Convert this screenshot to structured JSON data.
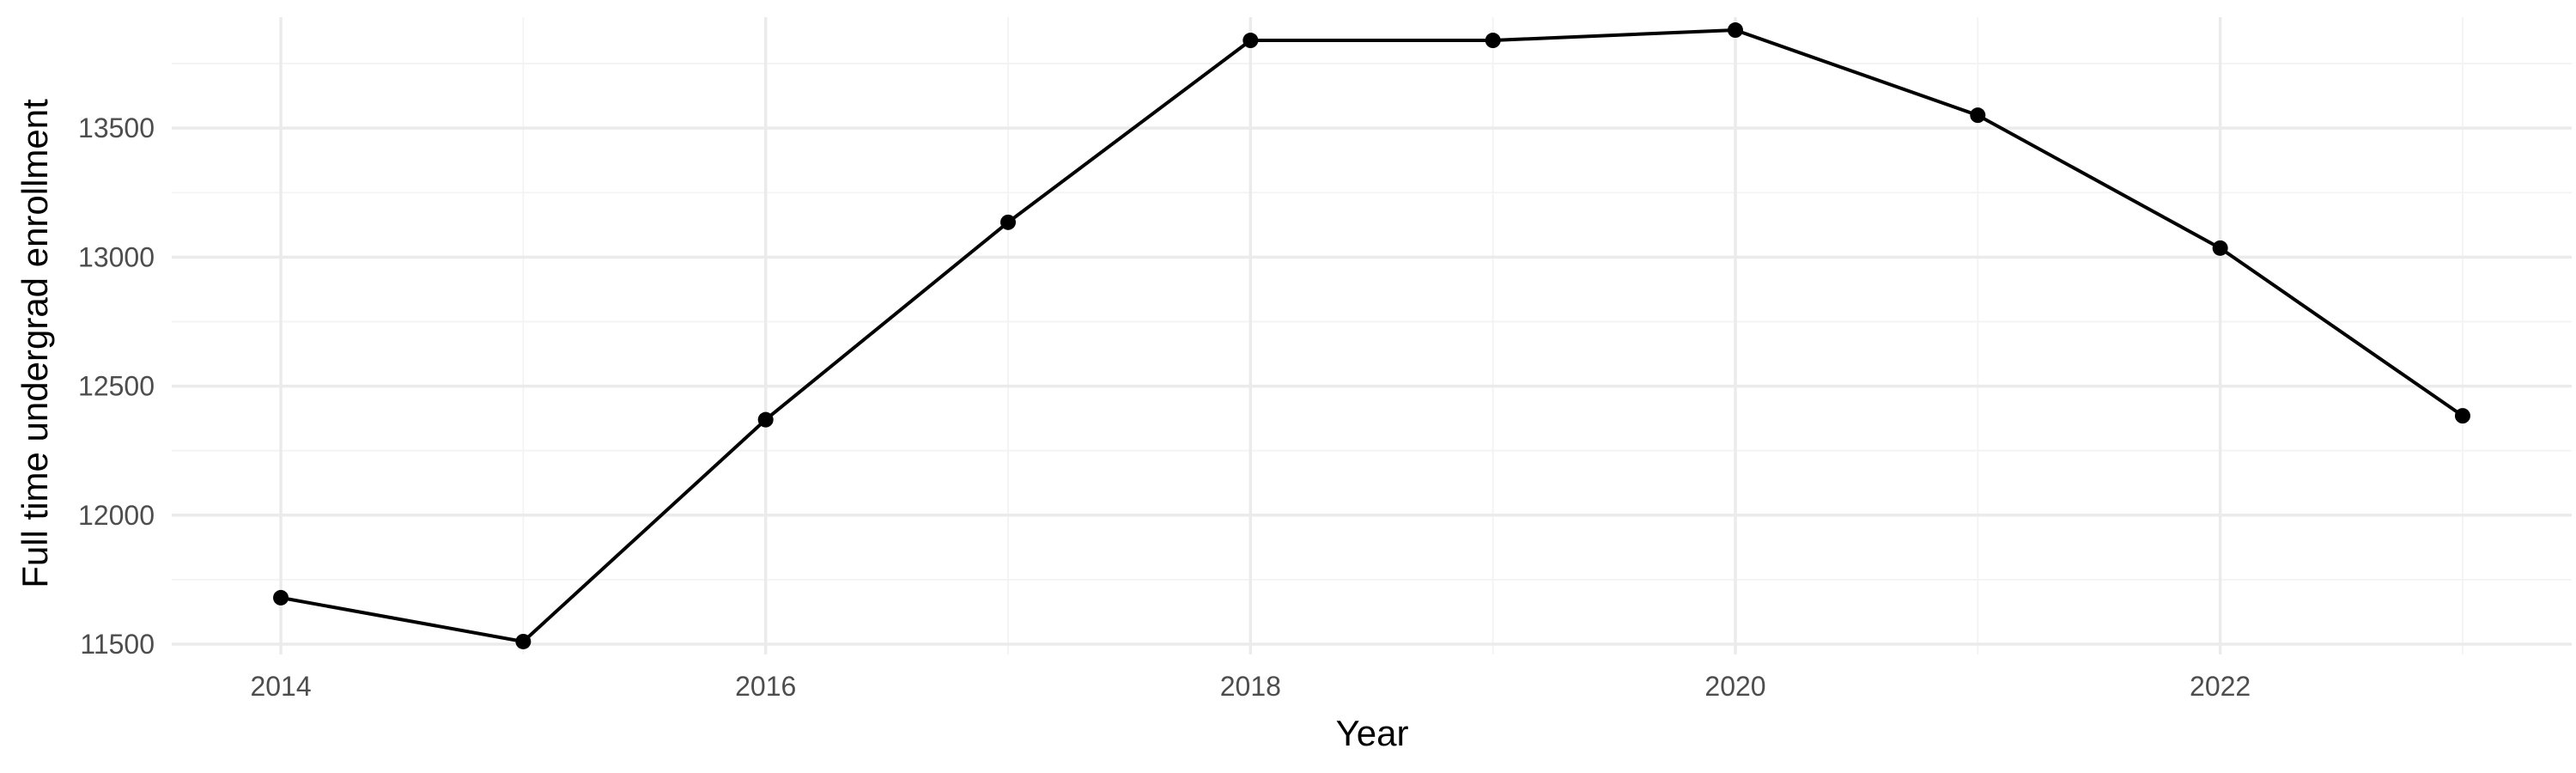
{
  "chart_data": {
    "type": "line",
    "title": "",
    "xlabel": "Year",
    "ylabel": "Full time undergrad enrollment",
    "x": [
      2014,
      2015,
      2016,
      2017,
      2018,
      2019,
      2020,
      2021,
      2022,
      2023
    ],
    "series": [
      {
        "values": [
          11680,
          11510,
          12370,
          13135,
          13840,
          13840,
          13880,
          13550,
          13035,
          12385
        ]
      }
    ],
    "xlim": [
      2013.55,
      2023.45
    ],
    "ylim": [
      11460,
      13930
    ],
    "x_ticks": [
      2014,
      2016,
      2018,
      2020,
      2022
    ],
    "x_tick_labels": [
      "2014",
      "2016",
      "2018",
      "2020",
      "2022"
    ],
    "x_minor_ticks": [
      2015,
      2017,
      2019,
      2021,
      2023
    ],
    "y_ticks": [
      11500,
      12000,
      12500,
      13000,
      13500
    ],
    "y_tick_labels": [
      "11500",
      "12000",
      "12500",
      "13000",
      "13500"
    ],
    "y_minor_ticks": [
      11750,
      12250,
      12750,
      13250,
      13750
    ],
    "grid": true,
    "legend": "none",
    "colors": {
      "line": "#000000",
      "point": "#000000",
      "grid": "#ebebeb",
      "tick_text": "#4d4d4d"
    }
  }
}
